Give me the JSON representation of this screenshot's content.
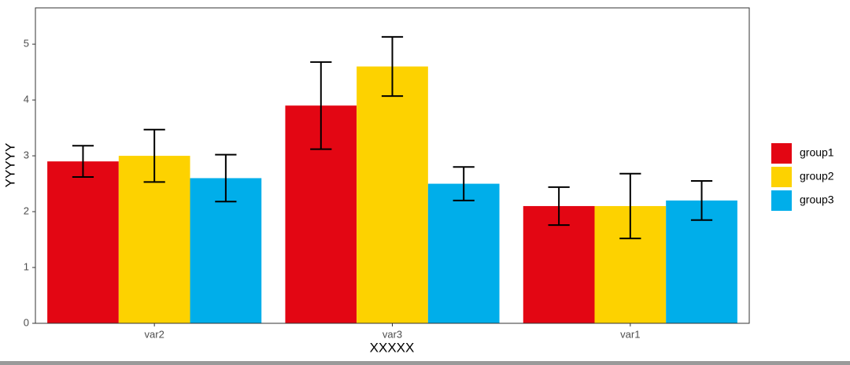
{
  "chart_data": {
    "type": "bar",
    "x_label": "XXXXX",
    "y_label": "YYYYY",
    "categories": [
      "var2",
      "var3",
      "var1"
    ],
    "series": [
      {
        "name": "group1",
        "color": "#e30613",
        "values": [
          2.9,
          3.9,
          2.1
        ],
        "errors": [
          0.28,
          0.78,
          0.34
        ]
      },
      {
        "name": "group2",
        "color": "#fdd200",
        "values": [
          3.0,
          4.6,
          2.1
        ],
        "errors": [
          0.47,
          0.53,
          0.58
        ]
      },
      {
        "name": "group3",
        "color": "#00aeea",
        "values": [
          2.6,
          2.5,
          2.2
        ],
        "errors": [
          0.42,
          0.3,
          0.35
        ]
      }
    ],
    "ylim": [
      0,
      5.65
    ],
    "yticks": [
      0,
      1,
      2,
      3,
      4,
      5
    ],
    "grid": false,
    "legend": "right"
  }
}
